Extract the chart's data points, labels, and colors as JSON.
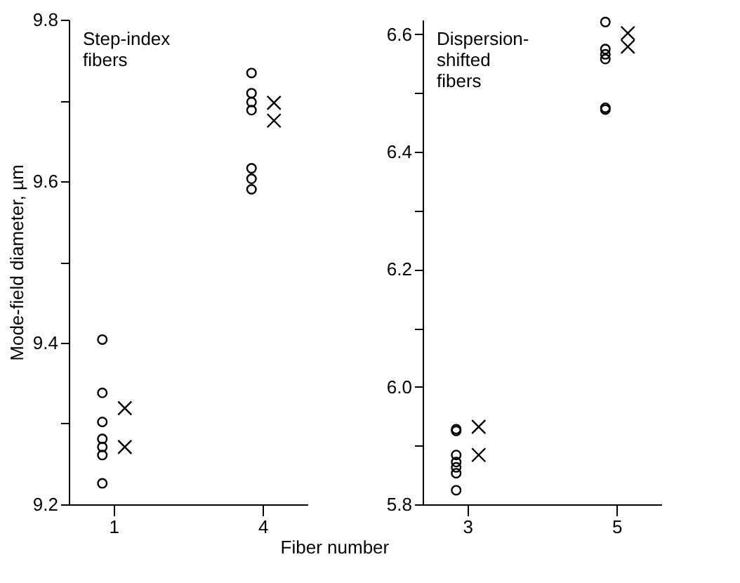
{
  "chart_data": [
    {
      "type": "scatter",
      "xlabel": "Fiber number",
      "ylabel": "Mode-field diameter, µm",
      "annotations": [
        "Step-index\nfibers"
      ],
      "categories": [
        "1",
        "4"
      ],
      "ylim": [
        9.2,
        9.8
      ],
      "yticks": [
        9.2,
        {
          "value": 9.3,
          "label": null
        },
        9.4,
        {
          "value": 9.5,
          "label": null
        },
        9.6,
        {
          "value": 9.7,
          "label": null
        },
        9.8
      ],
      "grid": false,
      "series": [
        {
          "color": "#000000",
          "marker": "circle",
          "x": [
            "1",
            "1",
            "1",
            "1",
            "1",
            "1",
            "1",
            "4",
            "4",
            "4",
            "4",
            "4",
            "4",
            "4"
          ],
          "values": [
            9.404,
            9.338,
            9.302,
            9.281,
            9.271,
            9.261,
            9.226,
            9.734,
            9.709,
            9.698,
            9.688,
            9.616,
            9.603,
            9.59
          ]
        },
        {
          "color": "#000000",
          "marker": "cross",
          "x": [
            "1",
            "1",
            "4",
            "4"
          ],
          "values": [
            9.319,
            9.271,
            9.697,
            9.675
          ]
        }
      ]
    },
    {
      "type": "scatter",
      "annotations": [
        "Dispersion-\nshifted\nfibers"
      ],
      "categories": [
        "3",
        "5"
      ],
      "ylim": [
        5.8,
        6.625
      ],
      "yticks": [
        5.8,
        {
          "value": 5.9,
          "label": null
        },
        {
          "value": 6.0,
          "label": "6.0"
        },
        {
          "value": 6.1,
          "label": null
        },
        6.2,
        {
          "value": 6.3,
          "label": null
        },
        6.4,
        {
          "value": 6.5,
          "label": null
        },
        6.6
      ],
      "grid": false,
      "series": [
        {
          "color": "#000000",
          "marker": "circle",
          "x": [
            "3",
            "3",
            "3",
            "3",
            "3",
            "3",
            "3",
            "5",
            "5",
            "5",
            "5",
            "5",
            "5"
          ],
          "values": [
            5.928,
            5.925,
            5.884,
            5.872,
            5.863,
            5.853,
            5.824,
            6.621,
            6.575,
            6.566,
            6.558,
            6.475,
            6.472
          ]
        },
        {
          "color": "#000000",
          "marker": "cross",
          "x": [
            "3",
            "3",
            "5",
            "5"
          ],
          "values": [
            5.932,
            5.884,
            6.602,
            6.579
          ]
        }
      ]
    }
  ]
}
